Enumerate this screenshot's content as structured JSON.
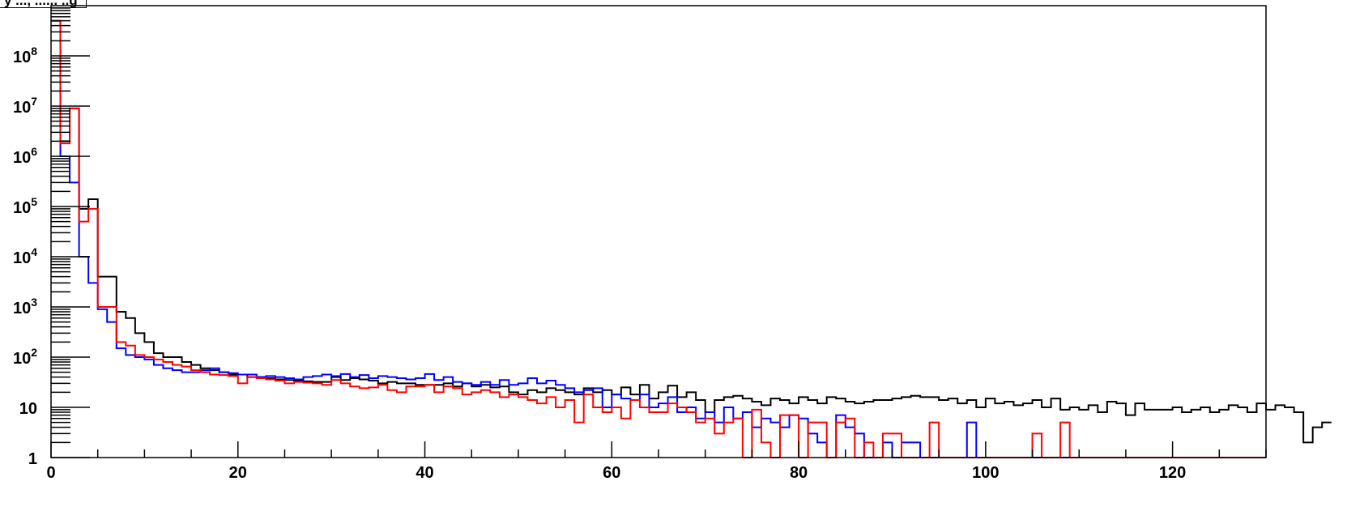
{
  "chart_data": {
    "type": "histogram",
    "title": "y ..., ...... ..g",
    "yscale": "log",
    "xlim": [
      0,
      130
    ],
    "ylim": [
      1,
      1000000000
    ],
    "bin_width": 1,
    "x_ticks": [
      0,
      20,
      40,
      60,
      80,
      100,
      120
    ],
    "y_ticks": [
      {
        "value": 1,
        "label": "1"
      },
      {
        "value": 10,
        "label": "10"
      },
      {
        "value": 100,
        "label": "10",
        "exp": "2"
      },
      {
        "value": 1000,
        "label": "10",
        "exp": "3"
      },
      {
        "value": 10000,
        "label": "10",
        "exp": "4"
      },
      {
        "value": 100000,
        "label": "10",
        "exp": "5"
      },
      {
        "value": 1000000,
        "label": "10",
        "exp": "6"
      },
      {
        "value": 10000000,
        "label": "10",
        "exp": "7"
      },
      {
        "value": 100000000,
        "label": "10",
        "exp": "8"
      }
    ],
    "grid": false,
    "series": [
      {
        "color": "#000000",
        "values": [
          500000000,
          2000000,
          9000000,
          90000,
          140000,
          4000,
          4000,
          800,
          600,
          300,
          200,
          120,
          100,
          100,
          80,
          70,
          60,
          55,
          50,
          45,
          45,
          40,
          40,
          38,
          36,
          35,
          34,
          33,
          32,
          32,
          40,
          35,
          38,
          36,
          34,
          30,
          32,
          30,
          30,
          28,
          28,
          28,
          30,
          26,
          30,
          26,
          28,
          25,
          26,
          20,
          18,
          22,
          20,
          24,
          22,
          20,
          18,
          24,
          20,
          22,
          18,
          25,
          18,
          28,
          15,
          20,
          27,
          16,
          20,
          14,
          8,
          14,
          16,
          17,
          15,
          13,
          11,
          15,
          14,
          12,
          16,
          14,
          12,
          16,
          15,
          13,
          12,
          13,
          14,
          14,
          15,
          16,
          17,
          16,
          16,
          14,
          15,
          12,
          14,
          10,
          15,
          12,
          13,
          11,
          12,
          14,
          10,
          15,
          9,
          10,
          9,
          11,
          8,
          13,
          12,
          7,
          12,
          9,
          9,
          9,
          10,
          8,
          9,
          10,
          8,
          9,
          11,
          10,
          8,
          12,
          9,
          11,
          10,
          8,
          2,
          4,
          5
        ]
      },
      {
        "color": "#0000ff",
        "values": [
          500000000,
          1000000,
          300000,
          10000,
          3000,
          900,
          500,
          150,
          110,
          100,
          90,
          70,
          60,
          55,
          50,
          50,
          55,
          60,
          50,
          48,
          45,
          45,
          40,
          42,
          40,
          38,
          36,
          40,
          42,
          45,
          42,
          46,
          40,
          44,
          38,
          42,
          40,
          38,
          36,
          38,
          46,
          35,
          40,
          32,
          30,
          28,
          32,
          28,
          35,
          28,
          30,
          38,
          30,
          34,
          28,
          24,
          20,
          22,
          24,
          10,
          18,
          15,
          14,
          18,
          10,
          12,
          16,
          8,
          10,
          6,
          8,
          5,
          10,
          6,
          8,
          4,
          6,
          5,
          4,
          7,
          6,
          3,
          2,
          1,
          7,
          4,
          3,
          1,
          1,
          2,
          1,
          2,
          2,
          1,
          1,
          1,
          1,
          1,
          5,
          1,
          1,
          1,
          1,
          1,
          1,
          1,
          1,
          1,
          1,
          1,
          1,
          1,
          1,
          1,
          1,
          1,
          1,
          1,
          1,
          1,
          1,
          1,
          1,
          1,
          1,
          1,
          1,
          1,
          1,
          1
        ]
      },
      {
        "color": "#ff0000",
        "values": [
          500000000,
          1800000,
          9000000,
          50000,
          90000,
          1000,
          1000,
          200,
          170,
          110,
          100,
          90,
          80,
          70,
          65,
          55,
          50,
          45,
          44,
          42,
          30,
          40,
          38,
          36,
          34,
          30,
          32,
          31,
          30,
          28,
          35,
          30,
          26,
          24,
          25,
          28,
          22,
          20,
          26,
          26,
          28,
          20,
          26,
          24,
          18,
          20,
          22,
          20,
          16,
          18,
          16,
          14,
          12,
          16,
          10,
          14,
          5,
          18,
          10,
          8,
          10,
          6,
          14,
          10,
          8,
          8,
          12,
          10,
          8,
          5,
          6,
          3,
          5,
          6,
          1,
          9,
          2,
          1,
          7,
          7,
          1,
          5,
          5,
          1,
          5,
          6,
          1,
          2,
          1,
          3,
          3,
          1,
          1,
          1,
          5,
          1,
          1,
          1,
          1,
          1,
          1,
          1,
          1,
          1,
          1,
          3,
          1,
          1,
          5,
          1,
          1,
          1,
          1,
          1,
          1,
          1,
          1,
          1,
          1,
          1,
          1,
          1,
          1,
          1,
          1,
          1,
          1,
          1,
          1,
          1
        ]
      }
    ]
  }
}
